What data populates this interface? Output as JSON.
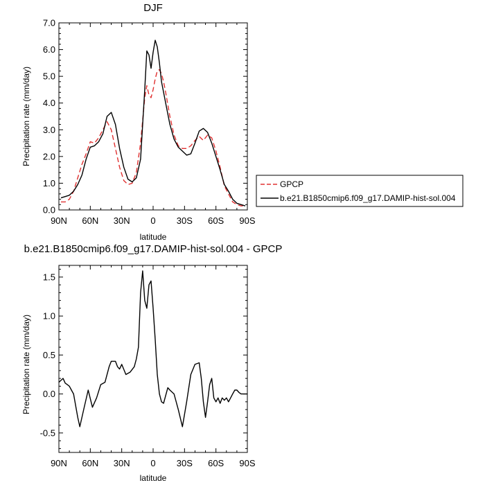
{
  "chart_data": [
    {
      "type": "line",
      "title": "DJF",
      "xlabel": "latitude",
      "ylabel": "Precipitation rate (mm/day)",
      "xlim": [
        90,
        -90
      ],
      "ylim": [
        0,
        7
      ],
      "x_ticks": [
        90,
        60,
        30,
        0,
        -30,
        -60,
        -90
      ],
      "x_tick_labels": [
        "90N",
        "60N",
        "30N",
        "0",
        "30S",
        "60S",
        "90S"
      ],
      "y_ticks": [
        0,
        1,
        2,
        3,
        4,
        5,
        6,
        7
      ],
      "y_tick_labels": [
        "0.0",
        "1.0",
        "2.0",
        "3.0",
        "4.0",
        "5.0",
        "6.0",
        "7.0"
      ],
      "grid": false,
      "legend_position": "right",
      "series": [
        {
          "name": "GPCP",
          "color": "#e03030",
          "dash": "dashed",
          "x": [
            88,
            84,
            80,
            76,
            72,
            68,
            64,
            60,
            56,
            52,
            48,
            44,
            40,
            36,
            32,
            28,
            24,
            20,
            16,
            12,
            8,
            6,
            4,
            2,
            0,
            -2,
            -4,
            -6,
            -8,
            -10,
            -12,
            -16,
            -20,
            -24,
            -28,
            -32,
            -36,
            -40,
            -44,
            -48,
            -52,
            -56,
            -60,
            -64,
            -68,
            -72,
            -76,
            -80,
            -84,
            -88
          ],
          "y": [
            0.3,
            0.3,
            0.4,
            0.7,
            1.2,
            1.7,
            2.1,
            2.55,
            2.5,
            2.7,
            3.0,
            3.3,
            3.0,
            2.3,
            1.6,
            1.1,
            0.95,
            1.0,
            1.4,
            2.5,
            4.2,
            4.65,
            4.3,
            4.2,
            4.5,
            4.9,
            5.2,
            5.25,
            5.1,
            4.8,
            4.4,
            3.5,
            2.8,
            2.4,
            2.3,
            2.3,
            2.4,
            2.6,
            2.75,
            2.6,
            2.8,
            2.7,
            2.2,
            1.6,
            0.9,
            0.6,
            0.3,
            0.2,
            0.15,
            0.15
          ]
        },
        {
          "name": "b.e21.B1850cmip6.f09_g17.DAMIP-hist-sol.004",
          "color": "#000000",
          "dash": "solid",
          "x": [
            88,
            84,
            80,
            76,
            72,
            68,
            64,
            60,
            56,
            52,
            48,
            44,
            40,
            36,
            32,
            28,
            24,
            20,
            16,
            12,
            8,
            6,
            4,
            2,
            0,
            -2,
            -4,
            -6,
            -8,
            -10,
            -12,
            -16,
            -20,
            -24,
            -28,
            -32,
            -36,
            -40,
            -44,
            -48,
            -52,
            -56,
            -60,
            -64,
            -68,
            -72,
            -76,
            -80,
            -84,
            -88
          ],
          "y": [
            0.45,
            0.5,
            0.55,
            0.7,
            0.95,
            1.3,
            1.9,
            2.35,
            2.4,
            2.55,
            2.85,
            3.5,
            3.65,
            3.2,
            2.3,
            1.6,
            1.15,
            1.05,
            1.2,
            1.9,
            4.5,
            5.95,
            5.8,
            5.3,
            5.9,
            6.35,
            6.1,
            5.5,
            4.8,
            4.4,
            4.0,
            3.2,
            2.65,
            2.35,
            2.2,
            2.05,
            2.1,
            2.5,
            2.95,
            3.05,
            2.9,
            2.5,
            2.0,
            1.5,
            0.95,
            0.7,
            0.4,
            0.25,
            0.2,
            0.15
          ]
        }
      ]
    },
    {
      "type": "line",
      "title": "b.e21.B1850cmip6.f09_g17.DAMIP-hist-sol.004 - GPCP",
      "xlabel": "latitude",
      "ylabel": "Precipitation rate (mm/day)",
      "xlim": [
        90,
        -90
      ],
      "ylim": [
        -0.75,
        1.65
      ],
      "x_ticks": [
        90,
        60,
        30,
        0,
        -30,
        -60,
        -90
      ],
      "x_tick_labels": [
        "90N",
        "60N",
        "30N",
        "0",
        "30S",
        "60S",
        "90S"
      ],
      "y_ticks": [
        -0.5,
        0,
        0.5,
        1.0,
        1.5
      ],
      "y_tick_labels": [
        "-0.5",
        "0.0",
        "0.5",
        "1.0",
        "1.5"
      ],
      "grid": false,
      "series": [
        {
          "color": "#000000",
          "dash": "solid",
          "x": [
            90,
            86,
            84,
            82,
            80,
            78,
            76,
            72,
            70,
            66,
            62,
            58,
            54,
            50,
            46,
            42,
            40,
            36,
            34,
            32,
            30,
            26,
            22,
            18,
            16,
            14,
            12,
            10,
            8,
            6,
            4,
            2,
            0,
            -2,
            -4,
            -6,
            -8,
            -10,
            -12,
            -14,
            -16,
            -20,
            -24,
            -28,
            -32,
            -36,
            -40,
            -44,
            -46,
            -48,
            -50,
            -52,
            -54,
            -56,
            -58,
            -60,
            -62,
            -64,
            -66,
            -68,
            -70,
            -72,
            -74,
            -76,
            -78,
            -80,
            -82,
            -84,
            -86,
            -88,
            -90
          ],
          "y": [
            0.15,
            0.2,
            0.14,
            0.12,
            0.1,
            0.05,
            0.0,
            -0.3,
            -0.42,
            -0.18,
            0.05,
            -0.17,
            -0.05,
            0.12,
            0.15,
            0.35,
            0.42,
            0.42,
            0.35,
            0.32,
            0.38,
            0.25,
            0.28,
            0.35,
            0.45,
            0.6,
            1.3,
            1.58,
            1.2,
            1.1,
            1.4,
            1.45,
            1.1,
            0.7,
            0.25,
            0.0,
            -0.1,
            -0.12,
            -0.02,
            0.08,
            0.05,
            0.0,
            -0.2,
            -0.42,
            -0.1,
            0.25,
            0.38,
            0.4,
            0.2,
            -0.1,
            -0.3,
            -0.1,
            0.12,
            0.2,
            -0.05,
            -0.1,
            -0.05,
            -0.12,
            -0.05,
            -0.08,
            -0.05,
            -0.1,
            -0.05,
            0.0,
            0.05,
            0.05,
            0.02,
            0.0,
            0.0,
            0.0,
            0.0
          ]
        }
      ]
    }
  ]
}
